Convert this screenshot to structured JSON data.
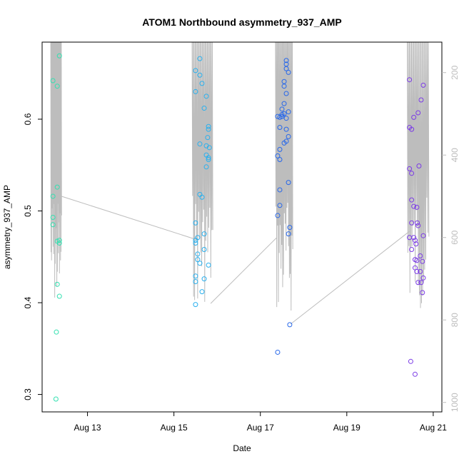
{
  "chart_data": {
    "type": "scatter",
    "title": "ATOM1 Northbound asymmetry_937_AMP",
    "xlabel": "Date",
    "ylabel": "asymmetry_937_AMP",
    "x_tick_labels": [
      "Aug 13",
      "Aug 15",
      "Aug 17",
      "Aug 19",
      "Aug 21"
    ],
    "x_ticks_days": [
      13,
      15,
      17,
      19,
      21
    ],
    "xlim_days": [
      11.95,
      21.2
    ],
    "ylim": [
      0.281,
      0.684
    ],
    "y_ticks": [
      0.3,
      0.4,
      0.5,
      0.6
    ],
    "y_tick_labels": [
      "0.3",
      "0.4",
      "0.5",
      "0.6"
    ],
    "y2_ticks": [
      200,
      400,
      600,
      800,
      1000
    ],
    "y2_tick_labels": [
      "200",
      "400",
      "600",
      "800",
      "1000"
    ],
    "y2lim": [
      1023,
      126
    ],
    "grid": false,
    "marker": "open-circle",
    "line_color": "#bdbdbd",
    "series": [
      {
        "color": "#33e0b0",
        "points": [
          [
            12.2,
            0.642
          ],
          [
            12.3,
            0.636
          ],
          [
            12.35,
            0.669
          ],
          [
            12.2,
            0.516
          ],
          [
            12.3,
            0.526
          ],
          [
            12.2,
            0.493
          ],
          [
            12.2,
            0.485
          ],
          [
            12.3,
            0.467
          ],
          [
            12.35,
            0.468
          ],
          [
            12.35,
            0.465
          ],
          [
            12.3,
            0.42
          ],
          [
            12.35,
            0.407
          ],
          [
            12.28,
            0.368
          ],
          [
            12.27,
            0.295
          ]
        ]
      },
      {
        "color": "#2ab0ee",
        "points": [
          [
            15.5,
            0.653
          ],
          [
            15.6,
            0.666
          ],
          [
            15.6,
            0.648
          ],
          [
            15.65,
            0.639
          ],
          [
            15.5,
            0.63
          ],
          [
            15.75,
            0.625
          ],
          [
            15.7,
            0.612
          ],
          [
            15.8,
            0.592
          ],
          [
            15.8,
            0.589
          ],
          [
            15.78,
            0.58
          ],
          [
            15.75,
            0.571
          ],
          [
            15.82,
            0.569
          ],
          [
            15.6,
            0.573
          ],
          [
            15.75,
            0.561
          ],
          [
            15.8,
            0.558
          ],
          [
            15.8,
            0.556
          ],
          [
            15.75,
            0.548
          ],
          [
            15.6,
            0.518
          ],
          [
            15.65,
            0.515
          ],
          [
            15.5,
            0.487
          ],
          [
            15.7,
            0.475
          ],
          [
            15.55,
            0.471
          ],
          [
            15.5,
            0.468
          ],
          [
            15.5,
            0.465
          ],
          [
            15.7,
            0.458
          ],
          [
            15.55,
            0.453
          ],
          [
            15.55,
            0.447
          ],
          [
            15.6,
            0.443
          ],
          [
            15.8,
            0.441
          ],
          [
            15.5,
            0.429
          ],
          [
            15.7,
            0.426
          ],
          [
            15.5,
            0.423
          ],
          [
            15.65,
            0.412
          ],
          [
            15.5,
            0.398
          ]
        ]
      },
      {
        "color": "#2868ea",
        "points": [
          [
            17.6,
            0.664
          ],
          [
            17.6,
            0.66
          ],
          [
            17.6,
            0.655
          ],
          [
            17.65,
            0.651
          ],
          [
            17.55,
            0.641
          ],
          [
            17.55,
            0.636
          ],
          [
            17.6,
            0.628
          ],
          [
            17.55,
            0.617
          ],
          [
            17.5,
            0.611
          ],
          [
            17.65,
            0.608
          ],
          [
            17.5,
            0.605
          ],
          [
            17.5,
            0.603
          ],
          [
            17.4,
            0.603
          ],
          [
            17.55,
            0.606
          ],
          [
            17.6,
            0.601
          ],
          [
            17.45,
            0.602
          ],
          [
            17.45,
            0.591
          ],
          [
            17.6,
            0.589
          ],
          [
            17.65,
            0.581
          ],
          [
            17.6,
            0.576
          ],
          [
            17.55,
            0.574
          ],
          [
            17.45,
            0.567
          ],
          [
            17.4,
            0.56
          ],
          [
            17.45,
            0.556
          ],
          [
            17.65,
            0.531
          ],
          [
            17.45,
            0.523
          ],
          [
            17.45,
            0.506
          ],
          [
            17.4,
            0.495
          ],
          [
            17.68,
            0.482
          ],
          [
            17.65,
            0.475
          ],
          [
            17.68,
            0.376
          ],
          [
            17.4,
            0.346
          ]
        ]
      },
      {
        "color": "#7b3be6",
        "points": [
          [
            20.45,
            0.643
          ],
          [
            20.77,
            0.637
          ],
          [
            20.72,
            0.621
          ],
          [
            20.65,
            0.607
          ],
          [
            20.55,
            0.602
          ],
          [
            20.45,
            0.591
          ],
          [
            20.5,
            0.589
          ],
          [
            20.67,
            0.549
          ],
          [
            20.45,
            0.546
          ],
          [
            20.5,
            0.541
          ],
          [
            20.5,
            0.512
          ],
          [
            20.55,
            0.505
          ],
          [
            20.62,
            0.504
          ],
          [
            20.5,
            0.487
          ],
          [
            20.63,
            0.487
          ],
          [
            20.65,
            0.484
          ],
          [
            20.45,
            0.471
          ],
          [
            20.55,
            0.471
          ],
          [
            20.58,
            0.468
          ],
          [
            20.77,
            0.473
          ],
          [
            20.6,
            0.464
          ],
          [
            20.5,
            0.458
          ],
          [
            20.7,
            0.451
          ],
          [
            20.58,
            0.447
          ],
          [
            20.62,
            0.446
          ],
          [
            20.75,
            0.445
          ],
          [
            20.58,
            0.438
          ],
          [
            20.62,
            0.434
          ],
          [
            20.7,
            0.434
          ],
          [
            20.77,
            0.427
          ],
          [
            20.65,
            0.422
          ],
          [
            20.72,
            0.422
          ],
          [
            20.75,
            0.411
          ],
          [
            20.48,
            0.336
          ],
          [
            20.58,
            0.322
          ]
        ]
      }
    ],
    "line_right_axis": {
      "clusters": [
        {
          "x_start": 12.15,
          "x_end": 12.4,
          "y2_min": 150,
          "y2_max": 780
        },
        {
          "x_start": 15.42,
          "x_end": 15.9,
          "y2_min": 150,
          "y2_max": 760
        },
        {
          "x_start": 17.35,
          "x_end": 17.75,
          "y2_min": 150,
          "y2_max": 790
        },
        {
          "x_start": 20.4,
          "x_end": 20.9,
          "y2_min": 150,
          "y2_max": 780
        }
      ],
      "connectors": [
        [
          [
            12.4,
            500
          ],
          [
            15.52,
            605
          ]
        ],
        [
          [
            15.85,
            760
          ],
          [
            17.38,
            600
          ]
        ],
        [
          [
            17.7,
            810
          ],
          [
            20.45,
            585
          ]
        ]
      ]
    }
  }
}
